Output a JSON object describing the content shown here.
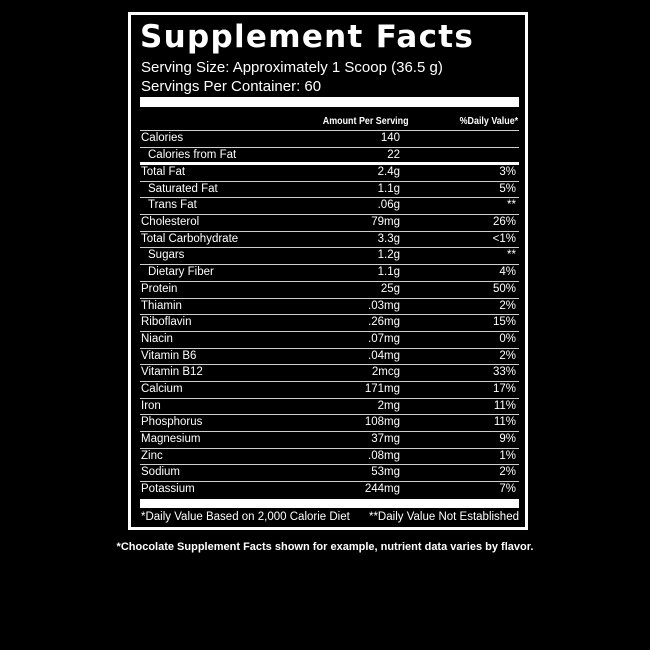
{
  "title": "Supplement Facts",
  "serving_size": "Serving Size: Approximately 1 Scoop (36.5 g)",
  "servings_per_container": "Servings Per Container: 60",
  "header": {
    "amount": "Amount Per Serving",
    "dv": "%Daily Value*"
  },
  "calories": [
    {
      "name": "Calories",
      "amount": "140",
      "dv": "",
      "indent": false
    },
    {
      "name": "Calories from Fat",
      "amount": "22",
      "dv": "",
      "indent": true
    }
  ],
  "nutrients": [
    {
      "name": "Total Fat",
      "amount": "2.4g",
      "dv": "3%",
      "indent": false
    },
    {
      "name": "Saturated Fat",
      "amount": "1.1g",
      "dv": "5%",
      "indent": true
    },
    {
      "name": "Trans Fat",
      "amount": ".06g",
      "dv": "**",
      "indent": true
    },
    {
      "name": "Cholesterol",
      "amount": "79mg",
      "dv": "26%",
      "indent": false
    },
    {
      "name": "Total Carbohydrate",
      "amount": "3.3g",
      "dv": "<1%",
      "indent": false
    },
    {
      "name": "Sugars",
      "amount": "1.2g",
      "dv": "**",
      "indent": true
    },
    {
      "name": "Dietary Fiber",
      "amount": "1.1g",
      "dv": "4%",
      "indent": true
    },
    {
      "name": "Protein",
      "amount": "25g",
      "dv": "50%",
      "indent": false
    },
    {
      "name": "Thiamin",
      "amount": ".03mg",
      "dv": "2%",
      "indent": false
    },
    {
      "name": "Riboflavin",
      "amount": ".26mg",
      "dv": "15%",
      "indent": false
    },
    {
      "name": "Niacin",
      "amount": ".07mg",
      "dv": "0%",
      "indent": false
    },
    {
      "name": "Vitamin B6",
      "amount": ".04mg",
      "dv": "2%",
      "indent": false
    },
    {
      "name": "Vitamin B12",
      "amount": "2mcg",
      "dv": "33%",
      "indent": false
    },
    {
      "name": "Calcium",
      "amount": "171mg",
      "dv": "17%",
      "indent": false
    },
    {
      "name": "Iron",
      "amount": "2mg",
      "dv": "11%",
      "indent": false
    },
    {
      "name": "Phosphorus",
      "amount": "108mg",
      "dv": "11%",
      "indent": false
    },
    {
      "name": "Magnesium",
      "amount": "37mg",
      "dv": "9%",
      "indent": false
    },
    {
      "name": "Zinc",
      "amount": ".08mg",
      "dv": "1%",
      "indent": false
    },
    {
      "name": "Sodium",
      "amount": "53mg",
      "dv": "2%",
      "indent": false
    },
    {
      "name": "Potassium",
      "amount": "244mg",
      "dv": "7%",
      "indent": false
    }
  ],
  "footnotes": {
    "left": "*Daily Value Based on 2,000 Calorie Diet",
    "right": "**Daily Value Not Established"
  },
  "note": "*Chocolate Supplement Facts shown for example, nutrient data varies by flavor."
}
